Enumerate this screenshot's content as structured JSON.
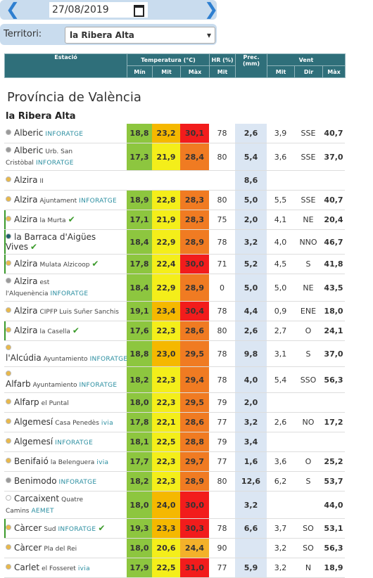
{
  "date": "27/08/2019",
  "territory_label": "Territori:",
  "territory": "la Ribera Alta",
  "table": {
    "headers": {
      "station": "Estació",
      "temperature": "Temperatura (°C)",
      "humidity": "HR (%)",
      "precipitation": "Prec. (mm)",
      "wind": "Vent",
      "sub": [
        "Mín",
        "Mit",
        "Màx",
        "Mit",
        "Mit",
        "Dir",
        "Màx"
      ]
    }
  },
  "province": "Província de València",
  "region": "la Ribera Alta",
  "rows": [
    {
      "name": "Alberic",
      "source": "INFORATGE",
      "dot": "#9a9a9a",
      "cells": [
        "18,8",
        "23,2",
        "30,1",
        "78",
        "2,6",
        "3,9",
        "SSE",
        "40,7"
      ]
    },
    {
      "name": "Alberic",
      "detail": "Urb. San Cristòbal",
      "source": "INFORATGE",
      "dot": "#9a9a9a",
      "cells": [
        "17,3",
        "21,9",
        "28,4",
        "80",
        "5,4",
        "3,6",
        "SSE",
        "37,0"
      ]
    },
    {
      "name": "Alzira",
      "detail": "II",
      "dot": "#e8b84a",
      "cells": [
        null,
        null,
        null,
        null,
        "8,6",
        null,
        null,
        null
      ]
    },
    {
      "name": "Alzira",
      "detail": "Ajuntament",
      "source": "INFORATGE",
      "dot": "#e8b84a",
      "cells": [
        "18,9",
        "22,8",
        "28,3",
        "80",
        "5,0",
        "5,5",
        "SSE",
        "40,7"
      ]
    },
    {
      "name": "Alzira",
      "detail": "la Murta",
      "verified": true,
      "dot": "#e8b84a",
      "cells": [
        "17,1",
        "21,9",
        "28,3",
        "75",
        "2,0",
        "4,1",
        "NE",
        "20,4"
      ]
    },
    {
      "name": "la Barraca d'Aigües Vives",
      "verified": true,
      "dot": "#1f5f6a",
      "cells": [
        "18,4",
        "22,9",
        "28,9",
        "78",
        "3,2",
        "4,0",
        "NNO",
        "46,7"
      ]
    },
    {
      "name": "Alzira",
      "detail": "Mulata Alzicoop",
      "verified": true,
      "dot": "#e8b84a",
      "cells": [
        "17,8",
        "22,4",
        "30,0",
        "71",
        "5,2",
        "4,5",
        "S",
        "41,8"
      ]
    },
    {
      "name": "Alzira",
      "detail": "est l'Alquenència",
      "source": "INFORATGE",
      "dot": "#9a9a9a",
      "cells": [
        "18,4",
        "22,9",
        "28,9",
        "0",
        "5,0",
        "5,0",
        "NE",
        "43,5"
      ]
    },
    {
      "name": "Alzira",
      "detail": "CIPFP Luis Suñer Sanchis",
      "dot": "#e8b84a",
      "cells": [
        "19,1",
        "23,4",
        "30,4",
        "78",
        "4,4",
        "0,9",
        "ENE",
        "18,0"
      ]
    },
    {
      "name": "Alzira",
      "detail": "la Casella",
      "verified": true,
      "dot": "#e8b84a",
      "cells": [
        "17,6",
        "22,3",
        "28,6",
        "80",
        "2,6",
        "2,7",
        "O",
        "24,1"
      ]
    },
    {
      "name": "l'Alcúdia",
      "detail": "Ayuntamiento",
      "source": "INFORATGE",
      "dot": "#e8b84a",
      "cells": [
        "18,8",
        "23,0",
        "29,5",
        "78",
        "9,8",
        "3,1",
        "S",
        "37,0"
      ]
    },
    {
      "name": "Alfarb",
      "detail": "Ayuntamiento",
      "source": "INFORATGE",
      "dot": "#e8b84a",
      "cells": [
        "18,2",
        "22,3",
        "29,4",
        "78",
        "4,0",
        "5,4",
        "SSO",
        "56,3"
      ]
    },
    {
      "name": "Alfarp",
      "detail": "el Puntal",
      "dot": "#e8b84a",
      "cells": [
        "18,0",
        "22,3",
        "29,5",
        "79",
        "2,0",
        null,
        null,
        null
      ]
    },
    {
      "name": "Algemesí",
      "detail": "Casa Penedès",
      "source": "ivia",
      "dot": "#e8b84a",
      "cells": [
        "17,8",
        "22,1",
        "28,6",
        "77",
        "3,2",
        "2,6",
        "NO",
        "17,2"
      ]
    },
    {
      "name": "Algemesí",
      "source": "INFORATGE",
      "dot": "#e8b84a",
      "cells": [
        "18,1",
        "22,5",
        "28,8",
        "79",
        "3,4",
        null,
        null,
        null
      ]
    },
    {
      "name": "Benifaió",
      "detail": "la Belenguera",
      "source": "ivia",
      "dot": "#e8b84a",
      "cells": [
        "17,7",
        "22,3",
        "29,7",
        "77",
        "1,6",
        "3,6",
        "O",
        "25,2"
      ]
    },
    {
      "name": "Benimodo",
      "source": "INFORATGE",
      "dot": "#9a9a9a",
      "cells": [
        "18,2",
        "22,3",
        "28,9",
        "80",
        "12,6",
        "6,2",
        "S",
        "53,7"
      ]
    },
    {
      "name": "Carcaixent",
      "detail": "Quatre Camins",
      "source": "AEMET",
      "dot": "#ffffff",
      "cells": [
        "18,0",
        "24,0",
        "30,0",
        null,
        "3,2",
        null,
        null,
        "44,0"
      ]
    },
    {
      "name": "Càrcer",
      "detail": "Sud",
      "source": "INFORATGE",
      "verified": true,
      "dot": "#e8b84a",
      "cells": [
        "19,3",
        "23,3",
        "30,3",
        "78",
        "6,6",
        "3,7",
        "SO",
        "53,1"
      ]
    },
    {
      "name": "Càrcer",
      "detail": "Pla del Rei",
      "dot": "#e8b84a",
      "cells": [
        "18,0",
        "20,6",
        "24,4",
        "90",
        null,
        "3,2",
        "SO",
        "56,3"
      ]
    },
    {
      "name": "Carlet",
      "detail": "el Fosseret",
      "source": "ivia",
      "dot": "#e8b84a",
      "cells": [
        "17,9",
        "22,5",
        "31,0",
        "77",
        "5,9",
        "3,2",
        "N",
        "18,9"
      ]
    }
  ]
}
